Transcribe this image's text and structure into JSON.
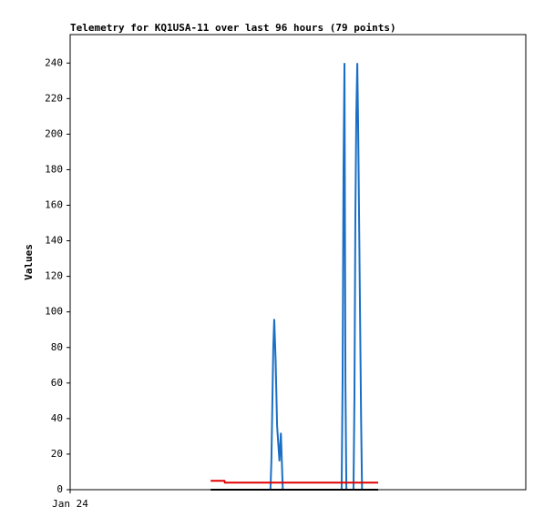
{
  "chart_data": {
    "type": "line",
    "title": "Telemetry for KQ1USA-11 over last 96 hours (79 points)",
    "ylabel": "Values",
    "xlim": [
      0,
      96
    ],
    "xticks": [
      {
        "value": 0,
        "label": "Jan 24"
      }
    ],
    "ylim": [
      0,
      256
    ],
    "yticks": [
      0,
      20,
      40,
      60,
      80,
      100,
      120,
      140,
      160,
      180,
      200,
      220,
      240
    ],
    "grid": false,
    "series": [
      {
        "color": "#1a6fc4",
        "x": [
          29.6,
          42.2,
          42.4,
          42.6,
          42.8,
          43.0,
          43.3,
          43.6,
          43.9,
          44.1,
          44.4,
          44.6,
          44.8,
          57.2,
          57.4,
          57.6,
          57.8,
          58.0,
          58.2,
          59.7,
          59.9,
          60.1,
          60.3,
          60.5,
          60.7,
          61.0,
          61.3,
          61.5,
          64.9
        ],
        "values": [
          0,
          0,
          16,
          48,
          80,
          96,
          72,
          36,
          24,
          16,
          32,
          16,
          0,
          0,
          60,
          180,
          240,
          60,
          0,
          0,
          52,
          156,
          212,
          240,
          200,
          120,
          40,
          0,
          0
        ]
      },
      {
        "color": "#e00000",
        "x": [
          29.6,
          32.5,
          32.6,
          64.9
        ],
        "values": [
          5,
          5,
          4,
          4
        ]
      },
      {
        "color": "#000000",
        "x": [
          29.6,
          64.9
        ],
        "values": [
          0,
          0
        ]
      }
    ]
  }
}
